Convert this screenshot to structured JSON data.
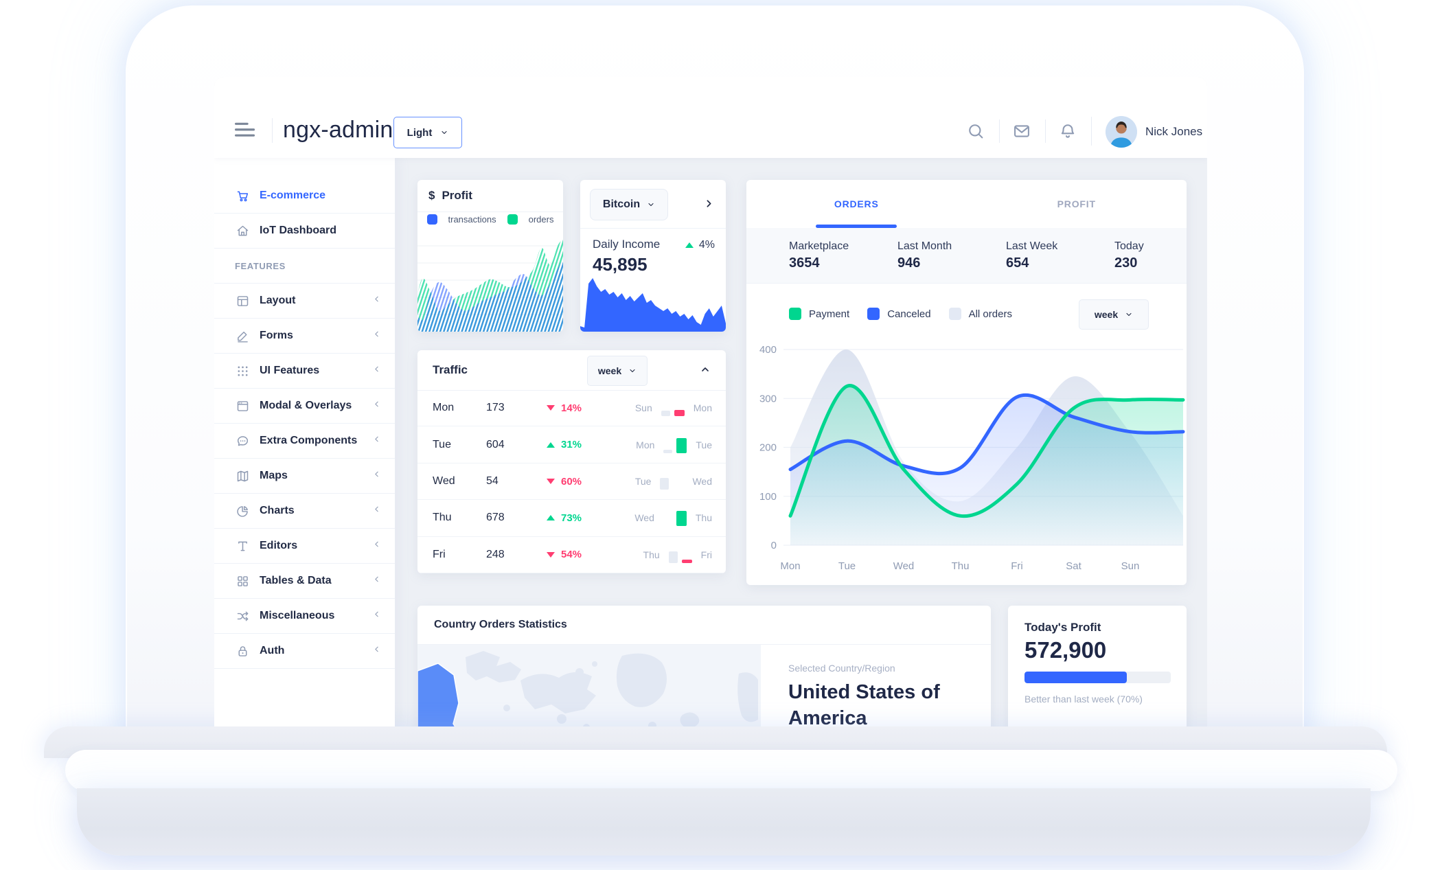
{
  "header": {
    "brand": "ngx-admin",
    "menu_icon": "hamburger-icon",
    "theme_select": {
      "value": "Light"
    },
    "action_icons": [
      "search-icon",
      "email-icon",
      "bell-icon"
    ],
    "user": {
      "name": "Nick Jones"
    }
  },
  "sidebar": {
    "items": [
      {
        "label": "E-commerce",
        "icon": "shopping-cart-icon",
        "active": true,
        "expandable": false
      },
      {
        "label": "IoT Dashboard",
        "icon": "home-icon",
        "expandable": false
      },
      {
        "type": "section",
        "label": "FEATURES"
      },
      {
        "label": "Layout",
        "icon": "layout-icon",
        "expandable": true
      },
      {
        "label": "Forms",
        "icon": "edit-icon",
        "expandable": true
      },
      {
        "label": "UI Features",
        "icon": "keypad-icon",
        "expandable": true
      },
      {
        "label": "Modal & Overlays",
        "icon": "browser-icon",
        "expandable": true
      },
      {
        "label": "Extra Components",
        "icon": "message-circle-icon",
        "expandable": true
      },
      {
        "label": "Maps",
        "icon": "map-icon",
        "expandable": true
      },
      {
        "label": "Charts",
        "icon": "pie-chart-icon",
        "expandable": true
      },
      {
        "label": "Editors",
        "icon": "text-icon",
        "expandable": true
      },
      {
        "label": "Tables & Data",
        "icon": "grid-icon",
        "expandable": true
      },
      {
        "label": "Miscellaneous",
        "icon": "shuffle-icon",
        "expandable": true
      },
      {
        "label": "Auth",
        "icon": "lock-icon",
        "expandable": true
      }
    ]
  },
  "cards": {
    "profit": {
      "currency_symbol": "$",
      "title": "Profit",
      "legend": [
        {
          "label": "transactions",
          "color": "#3366ff"
        },
        {
          "label": "orders",
          "color": "#00d68f"
        }
      ],
      "chart_data": {
        "type": "area",
        "series": [
          {
            "name": "transactions",
            "color": "#3366ff",
            "values": [
              30,
              12,
              40,
              52,
              44,
              30,
              22,
              26,
              32,
              36,
              40,
              44,
              56,
              60,
              46,
              38,
              50,
              68,
              85
            ]
          },
          {
            "name": "orders",
            "color": "#00d68f",
            "values": [
              18,
              55,
              42,
              22,
              28,
              36,
              40,
              44,
              50,
              55,
              52,
              47,
              48,
              55,
              65,
              88,
              70,
              92,
              100
            ]
          }
        ]
      }
    },
    "bitcoin": {
      "selector_value": "Bitcoin",
      "metric_label": "Daily Income",
      "metric_value": "45,895",
      "delta": "4%",
      "delta_direction": "up",
      "chart_data": {
        "type": "area",
        "color": "#3366ff",
        "values": [
          8,
          6,
          70,
          78,
          66,
          58,
          62,
          54,
          58,
          50,
          56,
          46,
          52,
          44,
          50,
          56,
          42,
          46,
          38,
          34,
          30,
          34,
          26,
          30,
          22,
          26,
          18,
          24,
          14,
          10,
          26,
          34,
          22,
          30,
          38,
          12
        ]
      }
    },
    "traffic": {
      "title": "Traffic",
      "period": "week",
      "rows": [
        {
          "day": "Mon",
          "value": "173",
          "delta": "14%",
          "direction": "down",
          "compare": {
            "from_label": "Sun",
            "to_label": "Mon",
            "from_bar_h": 8,
            "to_bar_h": 9
          }
        },
        {
          "day": "Tue",
          "value": "604",
          "delta": "31%",
          "direction": "up",
          "compare": {
            "from_label": "Mon",
            "to_label": "Tue",
            "from_bar_h": 5,
            "to_bar_h": 22
          }
        },
        {
          "day": "Wed",
          "value": "54",
          "delta": "60%",
          "direction": "down",
          "compare": {
            "from_label": "Tue",
            "to_label": "Wed",
            "from_bar_h": 17,
            "to_bar_h": 0
          }
        },
        {
          "day": "Thu",
          "value": "678",
          "delta": "73%",
          "direction": "up",
          "compare": {
            "from_label": "Wed",
            "to_label": "Thu",
            "from_bar_h": 0,
            "to_bar_h": 22
          }
        },
        {
          "day": "Fri",
          "value": "248",
          "delta": "54%",
          "direction": "down",
          "compare": {
            "from_label": "Thu",
            "to_label": "Fri",
            "from_bar_h": 17,
            "to_bar_h": 5
          }
        }
      ]
    },
    "orders_profit": {
      "tabs": [
        {
          "label": "ORDERS",
          "active": true
        },
        {
          "label": "PROFIT",
          "active": false
        }
      ],
      "stats": [
        {
          "label": "Marketplace",
          "value": "3654"
        },
        {
          "label": "Last Month",
          "value": "946"
        },
        {
          "label": "Last Week",
          "value": "654"
        },
        {
          "label": "Today",
          "value": "230"
        }
      ],
      "legend": [
        {
          "label": "Payment",
          "color": "#00d68f"
        },
        {
          "label": "Canceled",
          "color": "#3366ff"
        },
        {
          "label": "All orders",
          "color": "#e3e9f4"
        }
      ],
      "period": "week",
      "chart_data": {
        "type": "line-area",
        "x": [
          "Mon",
          "Tue",
          "Wed",
          "Thu",
          "Fri",
          "Sat",
          "Sun"
        ],
        "ylim": [
          0,
          400
        ],
        "yticks": [
          400,
          300,
          200,
          100,
          0
        ],
        "legend_position": "top",
        "series": [
          {
            "name": "All orders",
            "kind": "area",
            "color": "#dbe2f0",
            "values": [
              200,
              400,
              170,
              90,
              200,
              345,
              230
            ],
            "tail": 60
          },
          {
            "name": "Canceled",
            "kind": "line",
            "color": "#3366ff",
            "values": [
              155,
              213,
              162,
              158,
              303,
              262,
              232
            ],
            "tail": 232
          },
          {
            "name": "Payment",
            "kind": "line",
            "color": "#00d68f",
            "values": [
              60,
              325,
              155,
              60,
              125,
              280,
              297
            ],
            "tail": 297
          }
        ]
      }
    },
    "country": {
      "title": "Country Orders Statistics",
      "selected_label": "Selected Country/Region",
      "selected_country": "United States of America",
      "map_highlight_color": "#5a8cf8"
    },
    "today_profit": {
      "title": "Today's Profit",
      "value": "572,900",
      "progress_percent": 70,
      "caption": "Better than last week (70%)",
      "bar_color": "#3366ff"
    }
  },
  "colors": {
    "primary": "#3366ff",
    "success": "#00d68f",
    "danger": "#ff3d71",
    "text_dark": "#222b45",
    "text_muted": "#8f9bb3",
    "content_bg": "#edf0f5"
  }
}
